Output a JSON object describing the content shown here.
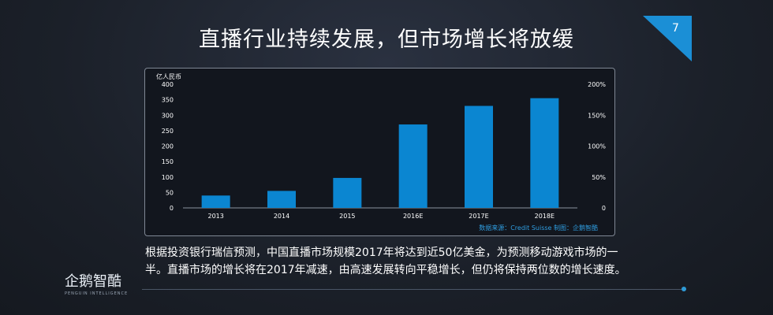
{
  "header": {
    "title": "直播行业持续发展，但市场增长将放缓",
    "page_number": "7"
  },
  "chart_data": {
    "type": "bar",
    "unit_label": "亿人民币",
    "categories": [
      "2013",
      "2014",
      "2015",
      "2016E",
      "2017E",
      "2018E"
    ],
    "values": [
      40,
      55,
      97,
      270,
      330,
      355
    ],
    "ylim": [
      0,
      400
    ],
    "yticks": [
      0,
      50,
      100,
      150,
      200,
      250,
      300,
      350,
      400
    ],
    "y2ticks": [
      "0",
      "50%",
      "100%",
      "150%",
      "200%"
    ],
    "source": "数据来源：Credit Suisse  制图：企鹅智酷",
    "bar_color": "#0b86d1",
    "grid": false
  },
  "description": "根据投资银行瑞信预测，中国直播市场规模2017年将达到近50亿美金，为预测移动游戏市场的一半。直播市场的增长将在2017年减速，由高速发展转向平稳增长，但仍将保持两位数的增长速度。",
  "logo": {
    "name": "企鹅智酷",
    "subtitle": "PENGUIN INTELLIGENCE"
  },
  "colors": {
    "accent": "#1b8fd6",
    "background": "#1c212b"
  }
}
